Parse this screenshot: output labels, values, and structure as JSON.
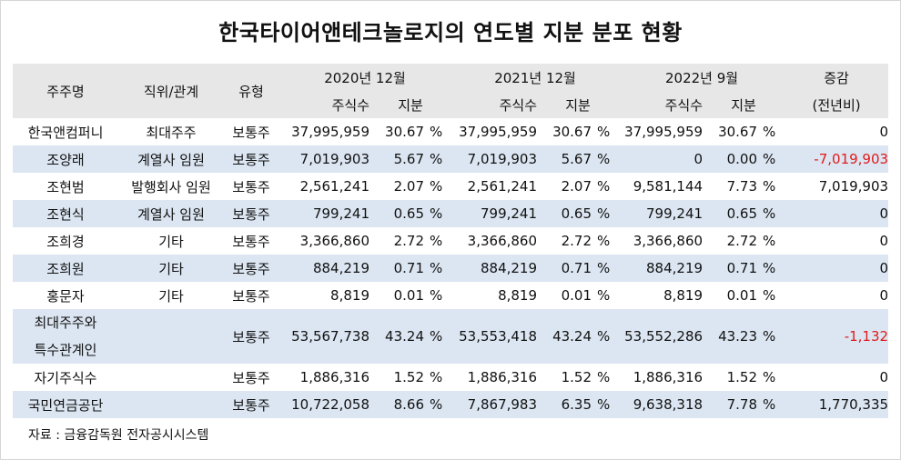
{
  "title": "한국타이어앤테크놀로지의 연도별 지분 분포 현황",
  "header": {
    "shareholder": "주주명",
    "position": "직위/관계",
    "type": "유형",
    "period1": "2020년 12월",
    "period2": "2021년 12월",
    "period3": "2022년 9월",
    "change_line1": "증감",
    "change_line2": "(전년비)",
    "shares": "주식수",
    "stake": "지분"
  },
  "pct_sign": "%",
  "rows": [
    {
      "name": "한국앤컴퍼니",
      "rel": "최대주주",
      "type": "보통주",
      "s1": "37,995,959",
      "p1": "30.67",
      "s2": "37,995,959",
      "p2": "30.67",
      "s3": "37,995,959",
      "p3": "30.67",
      "chg": "0",
      "neg": false
    },
    {
      "name": "조양래",
      "rel": "계열사 임원",
      "type": "보통주",
      "s1": "7,019,903",
      "p1": "5.67",
      "s2": "7,019,903",
      "p2": "5.67",
      "s3": "0",
      "p3": "0.00",
      "chg": "-7,019,903",
      "neg": true
    },
    {
      "name": "조현범",
      "rel": "발행회사 임원",
      "type": "보통주",
      "s1": "2,561,241",
      "p1": "2.07",
      "s2": "2,561,241",
      "p2": "2.07",
      "s3": "9,581,144",
      "p3": "7.73",
      "chg": "7,019,903",
      "neg": false
    },
    {
      "name": "조현식",
      "rel": "계열사 임원",
      "type": "보통주",
      "s1": "799,241",
      "p1": "0.65",
      "s2": "799,241",
      "p2": "0.65",
      "s3": "799,241",
      "p3": "0.65",
      "chg": "0",
      "neg": false
    },
    {
      "name": "조희경",
      "rel": "기타",
      "type": "보통주",
      "s1": "3,366,860",
      "p1": "2.72",
      "s2": "3,366,860",
      "p2": "2.72",
      "s3": "3,366,860",
      "p3": "2.72",
      "chg": "0",
      "neg": false
    },
    {
      "name": "조희원",
      "rel": "기타",
      "type": "보통주",
      "s1": "884,219",
      "p1": "0.71",
      "s2": "884,219",
      "p2": "0.71",
      "s3": "884,219",
      "p3": "0.71",
      "chg": "0",
      "neg": false
    },
    {
      "name": "홍문자",
      "rel": "기타",
      "type": "보통주",
      "s1": "8,819",
      "p1": "0.01",
      "s2": "8,819",
      "p2": "0.01",
      "s3": "8,819",
      "p3": "0.01",
      "chg": "0",
      "neg": false
    },
    {
      "name": "최대주주와",
      "name2": "특수관계인",
      "rel": "",
      "type": "보통주",
      "s1": "53,567,738",
      "p1": "43.24",
      "s2": "53,553,418",
      "p2": "43.24",
      "s3": "53,552,286",
      "p3": "43.23",
      "chg": "-1,132",
      "neg": true
    },
    {
      "name": "자기주식수",
      "rel": "",
      "type": "보통주",
      "s1": "1,886,316",
      "p1": "1.52",
      "s2": "1,886,316",
      "p2": "1.52",
      "s3": "1,886,316",
      "p3": "1.52",
      "chg": "0",
      "neg": false
    },
    {
      "name": "국민연금공단",
      "rel": "",
      "type": "보통주",
      "s1": "10,722,058",
      "p1": "8.66",
      "s2": "7,867,983",
      "p2": "6.35",
      "s3": "9,638,318",
      "p3": "7.78",
      "chg": "1,770,335",
      "neg": false
    }
  ],
  "footer": "자료 : 금융감독원 전자공시시스템"
}
